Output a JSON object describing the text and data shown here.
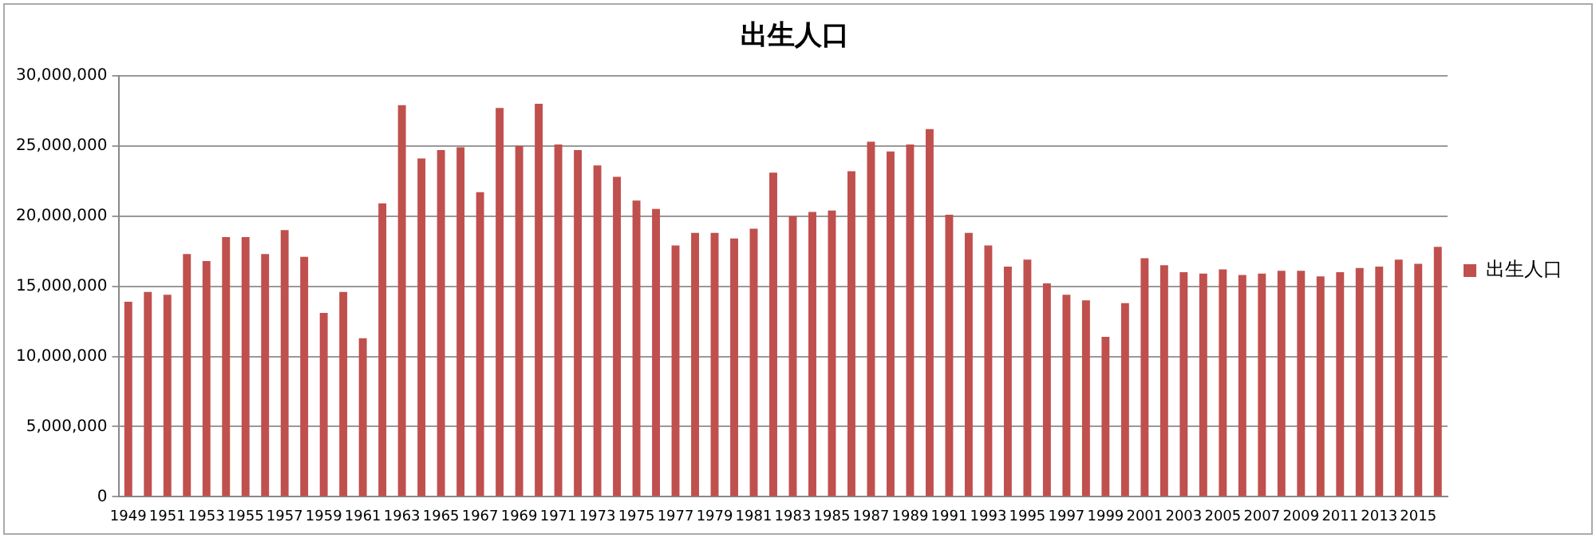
{
  "chart_data": {
    "type": "bar",
    "title": "出生人口",
    "categories": [
      "1949",
      null,
      "1951",
      null,
      "1953",
      null,
      "1955",
      null,
      "1957",
      null,
      "1959",
      null,
      "1961",
      null,
      "1963",
      null,
      "1965",
      null,
      "1967",
      null,
      "1969",
      null,
      "1971",
      null,
      "1973",
      null,
      "1975",
      null,
      "1977",
      null,
      "1979",
      null,
      "1981",
      null,
      "1983",
      null,
      "1985",
      null,
      "1987",
      null,
      "1989",
      null,
      "1991",
      null,
      "1993",
      null,
      "1995",
      null,
      "1997",
      null,
      "1999",
      null,
      "2001",
      null,
      "2003",
      null,
      "2005",
      null,
      "2007",
      null,
      "2009",
      null,
      "2011",
      null,
      "2013",
      null,
      "2015",
      null
    ],
    "series": [
      {
        "name": "出生人口",
        "color": "#c0504d",
        "values": [
          13900000,
          14600000,
          14400000,
          17300000,
          16800000,
          18500000,
          18500000,
          17300000,
          19000000,
          17100000,
          13100000,
          14600000,
          11300000,
          20900000,
          27900000,
          24100000,
          24700000,
          24900000,
          21700000,
          27700000,
          25000000,
          28000000,
          25100000,
          24700000,
          23600000,
          22800000,
          21100000,
          20500000,
          17900000,
          18800000,
          18800000,
          18400000,
          19100000,
          23100000,
          20000000,
          20300000,
          20400000,
          23200000,
          25300000,
          24600000,
          25100000,
          26200000,
          20100000,
          18800000,
          17900000,
          16400000,
          16900000,
          15200000,
          14400000,
          14000000,
          11400000,
          13800000,
          17000000,
          16500000,
          16000000,
          15900000,
          16200000,
          15800000,
          15900000,
          16100000,
          16100000,
          15700000,
          16000000,
          16300000,
          16400000,
          16900000,
          16600000,
          17800000
        ]
      }
    ],
    "ylim": [
      0,
      30000000
    ],
    "yticks": [
      0,
      {
        "value": 5000000,
        "label": "5,000,000"
      },
      {
        "value": 10000000,
        "label": "10,000,000"
      },
      {
        "value": 15000000,
        "label": "15,000,000"
      },
      {
        "value": 20000000,
        "label": "20,000,000"
      },
      {
        "value": 25000000,
        "label": "25,000,000"
      },
      {
        "value": 30000000,
        "label": "30,000,000"
      }
    ],
    "grid": "y",
    "legend": "right"
  }
}
